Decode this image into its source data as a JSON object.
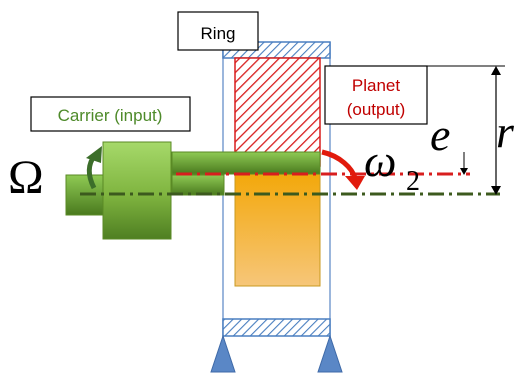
{
  "labels": {
    "ring": "Ring",
    "carrier": "Carrier (input)",
    "planet_line1": "Planet",
    "planet_line2": "(output)"
  },
  "symbols": {
    "omega_capital": "Ω",
    "omega_small": "ω",
    "omega_small_subscript": "2",
    "eccentricity": "e",
    "radius": "r"
  },
  "colors": {
    "carrier_green_light": "#a6d96a",
    "carrier_green_dark": "#5a8a25",
    "carrier_text": "#4e8a2a",
    "planet_text": "#c00000",
    "planet_hatch": "#d81e1e",
    "ring_hatch": "#4a7fc0",
    "planet_fill_top": "#f5b20f",
    "planet_fill_bottom": "#f6c47a",
    "arrow_red": "#e11a0c",
    "centerline_red": "#d81e1e",
    "centerline_green": "#3c5a1e",
    "support": "#5a87c6"
  }
}
